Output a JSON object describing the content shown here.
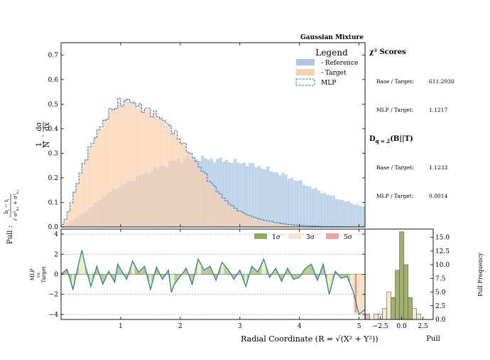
{
  "chart_data": [
    {
      "type": "bar",
      "panel": "main-histogram",
      "title": "Gaussian Mixture",
      "ylabel_main": "1/N · dσ/dx",
      "xlim": [
        0,
        5.1
      ],
      "ylim": [
        0,
        0.75
      ],
      "yticks": [
        0.0,
        0.1,
        0.2,
        0.3,
        0.4,
        0.5,
        0.6,
        0.7
      ],
      "bin_width": 0.05,
      "legend": {
        "title": "Legend",
        "placement": "top-right",
        "entries": [
          "- Reference",
          "- Target",
          "MLP"
        ]
      },
      "series": [
        {
          "name": "- Reference",
          "color": "#aac8e4",
          "profile_x": [
            0.0,
            0.05,
            0.1,
            0.2,
            0.3,
            0.4,
            0.5,
            0.6,
            0.7,
            0.8,
            0.9,
            1.0,
            1.1,
            1.2,
            1.3,
            1.4,
            1.5,
            1.6,
            1.7,
            1.8,
            1.9,
            2.0,
            2.1,
            2.2,
            2.3,
            2.4,
            2.5,
            2.7,
            2.9,
            3.1,
            3.3,
            3.5,
            3.7,
            3.9,
            4.1,
            4.3,
            4.5,
            4.7,
            4.9,
            5.1
          ],
          "profile_y": [
            0.0,
            0.005,
            0.012,
            0.028,
            0.045,
            0.062,
            0.08,
            0.1,
            0.12,
            0.138,
            0.155,
            0.168,
            0.18,
            0.192,
            0.205,
            0.218,
            0.228,
            0.238,
            0.248,
            0.258,
            0.268,
            0.275,
            0.278,
            0.28,
            0.28,
            0.278,
            0.276,
            0.272,
            0.266,
            0.258,
            0.248,
            0.232,
            0.215,
            0.196,
            0.172,
            0.15,
            0.13,
            0.11,
            0.095,
            0.08
          ]
        },
        {
          "name": "- Target",
          "color": "#fbd0ac",
          "profile_x": [
            0.0,
            0.05,
            0.1,
            0.15,
            0.2,
            0.3,
            0.4,
            0.5,
            0.6,
            0.7,
            0.8,
            0.9,
            1.0,
            1.1,
            1.2,
            1.3,
            1.4,
            1.5,
            1.6,
            1.7,
            1.8,
            1.9,
            2.0,
            2.1,
            2.2,
            2.3,
            2.4,
            2.5,
            2.6,
            2.7,
            2.8,
            2.9,
            3.0,
            3.2,
            3.4,
            3.6,
            3.8,
            4.0,
            4.2,
            4.4,
            4.6,
            4.8,
            5.1
          ],
          "profile_y": [
            0.0,
            0.02,
            0.045,
            0.08,
            0.12,
            0.2,
            0.27,
            0.33,
            0.38,
            0.42,
            0.46,
            0.49,
            0.505,
            0.515,
            0.51,
            0.49,
            0.48,
            0.47,
            0.455,
            0.44,
            0.415,
            0.385,
            0.355,
            0.32,
            0.29,
            0.255,
            0.22,
            0.185,
            0.155,
            0.125,
            0.1,
            0.08,
            0.064,
            0.042,
            0.028,
            0.018,
            0.011,
            0.007,
            0.004,
            0.002,
            0.001,
            0.0005,
            0.0
          ]
        },
        {
          "name": "MLP",
          "color": "#2a7fc0",
          "style": "dashed step outline, closely follows - Target"
        }
      ]
    },
    {
      "type": "line",
      "panel": "pull",
      "ylabel_left": "Pull : (b_i − t_i) / √(σ²_b,i + σ²_t,i)",
      "ylabel_inner": [
        "MLP",
        "vs.",
        "Target"
      ],
      "xlabel": "Radial Coordinate (R = √(X² + Y²))",
      "xlim": [
        0,
        5.1
      ],
      "ylim": [
        -4.5,
        4.5
      ],
      "xticks": [
        1,
        2,
        3,
        4,
        5
      ],
      "yticks": [
        -4,
        -2,
        0,
        2,
        4
      ],
      "reference_lines": [
        -4,
        -2,
        2,
        4
      ],
      "band_legend": [
        {
          "label": "1σ",
          "color": "#8fad5e"
        },
        {
          "label": "3σ",
          "color": "#f6e5cf"
        },
        {
          "label": "5σ",
          "color": "#f0a2a2"
        }
      ],
      "x": [
        0.0,
        0.1,
        0.2,
        0.3,
        0.35,
        0.4,
        0.5,
        0.6,
        0.7,
        0.8,
        0.9,
        0.95,
        1.0,
        1.1,
        1.2,
        1.3,
        1.4,
        1.5,
        1.6,
        1.7,
        1.8,
        1.85,
        1.9,
        2.0,
        2.1,
        2.2,
        2.3,
        2.4,
        2.5,
        2.6,
        2.7,
        2.8,
        2.9,
        3.0,
        3.1,
        3.2,
        3.3,
        3.4,
        3.5,
        3.6,
        3.7,
        3.8,
        3.9,
        4.0,
        4.1,
        4.2,
        4.3,
        4.4,
        4.5,
        4.6,
        4.7,
        4.8,
        4.9,
        5.0,
        5.1
      ],
      "pull": [
        0.0,
        0.5,
        -1.5,
        1.2,
        2.4,
        1.0,
        -1.2,
        0.8,
        -1.0,
        0.3,
        -0.8,
        1.0,
        0.5,
        -0.5,
        1.3,
        0.2,
        0.8,
        -1.5,
        0.7,
        -0.5,
        0.4,
        -1.8,
        -1.0,
        -0.2,
        0.6,
        -1.0,
        1.5,
        0.4,
        0.8,
        -0.6,
        1.2,
        0.5,
        -0.5,
        0.4,
        -1.2,
        0.8,
        0.2,
        1.5,
        -0.3,
        0.6,
        -0.7,
        0.6,
        -0.5,
        -0.3,
        0.6,
        1.0,
        -0.6,
        1.0,
        -2.0,
        0.3,
        -0.4,
        -0.2,
        -1.7,
        -4.0,
        -3.5
      ]
    },
    {
      "type": "bar",
      "panel": "pull-frequency",
      "xlabel": "Pull",
      "ylabel": "Pull Frequency",
      "xlim": [
        -4.3,
        3.7
      ],
      "ylim": [
        0,
        16.5
      ],
      "xticks": [
        -2.5,
        0.0,
        2.5
      ],
      "xtick_labels": [
        "−2.5",
        "0.0",
        "2.5"
      ],
      "yticks": [
        0.0,
        2.5,
        5.0,
        7.5,
        10.0,
        12.5,
        15.0
      ],
      "ytick_labels": [
        "0.0",
        "2.5",
        "5.0",
        "7.5",
        "10.0",
        "12.5",
        "15.0"
      ],
      "bin_edges": [
        -4.25,
        -3.75,
        -3.25,
        -2.75,
        -2.25,
        -1.75,
        -1.25,
        -0.75,
        -0.25,
        0.25,
        0.75,
        1.25,
        1.75,
        2.25
      ],
      "counts": [
        1,
        0,
        1,
        1,
        2,
        5,
        4,
        9,
        16,
        10,
        4,
        2,
        1
      ],
      "colors_by_band": {
        "within_1sigma": "#9fb070",
        "within_3sigma": "#f6e8d7",
        "beyond_3sigma": "#efbcbc"
      }
    }
  ],
  "side_panel": {
    "chi2_heading": "χ² Scores",
    "chi2_base_label": "Base / Target:",
    "chi2_base_value": "611.2930",
    "chi2_mlp_label": "MLP / Target:",
    "chi2_mlp_value": "1.1217",
    "dq_heading": "D_{q=2}(B||T)",
    "dq_base_label": "Base / Target:",
    "dq_base_value": "1.1233",
    "dq_mlp_label": "MLP / Target:",
    "dq_mlp_value": "0.0014"
  }
}
